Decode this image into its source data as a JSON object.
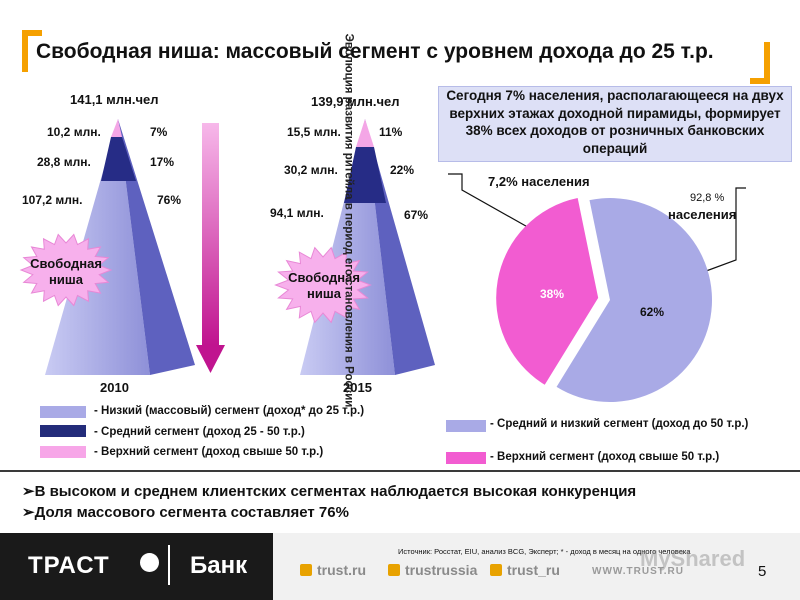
{
  "title": "Свободная ниша: массовый сегмент с уровнем дохода до 25 т.р.",
  "pyramid_2010": {
    "total": "141,1 млн.чел",
    "year": "2010",
    "rows": [
      {
        "abs": "10,2 млн.",
        "pct": "7%"
      },
      {
        "abs": "28,8 млн.",
        "pct": "17%"
      },
      {
        "abs": "107,2 млн.",
        "pct": "76%"
      }
    ],
    "niche_label": "Свободная ниша"
  },
  "pyramid_2015": {
    "total": "139,9 млн.чел",
    "year": "2015",
    "rows": [
      {
        "abs": "15,5 млн.",
        "pct": "11%"
      },
      {
        "abs": "30,2 млн.",
        "pct": "22%"
      },
      {
        "abs": "94,1 млн.",
        "pct": "67%"
      }
    ],
    "niche_label": "Свободная ниша"
  },
  "arrow_caption": "Эволюция развития ритейла в период его становления в России",
  "legend_left": [
    {
      "text": "- Низкий (массовый) сегмент (доход* до 25 т.р.)",
      "color": "#a9aae6"
    },
    {
      "text": "- Средний сегмент (доход 25 - 50 т.р.)",
      "color": "#232c7a"
    },
    {
      "text": "- Верхний сегмент (доход свыше 50 т.р.)",
      "color": "#f7a6e8"
    }
  ],
  "callout": "Сегодня 7% населения, располагающееся на двух верхних этажах доходной пирамиды, формирует 38% всех доходов от розничных банковских операций",
  "pie": {
    "label_small": "7,2% населения",
    "label_large_value": "92,8 %",
    "label_large_text": "населения",
    "slice_pink_label": "38%",
    "slice_blue_label": "62%"
  },
  "chart_data": {
    "type": "pie",
    "title": "",
    "slices": [
      {
        "name": "Верхний сегмент (доход свыше 50 т.р.)",
        "value": 38,
        "color": "#f25cd1"
      },
      {
        "name": "Средний и низкий сегмент (доход до 50 т.р.)",
        "value": 62,
        "color": "#a9aae6"
      }
    ]
  },
  "legend_right": [
    {
      "text": "- Средний и низкий сегмент (доход до 50 т.р.)",
      "color": "#a9aae6"
    },
    {
      "text": "- Верхний сегмент (доход свыше 50 т.р.)",
      "color": "#f25cd1"
    }
  ],
  "bullets": [
    "В высоком и среднем клиентских сегментах наблюдается высокая конкуренция",
    "Доля массового сегмента составляет 76%"
  ],
  "footer": {
    "brand": "ТРАСТ",
    "bank": "Банк",
    "source": "Источник: Росстат, EIU, анализ BCG, Эксперт; * - доход в месяц на одного человека",
    "links": [
      "trust.ru",
      "trustrussia",
      "trust_ru"
    ],
    "www": "WWW.TRUST.RU",
    "page": "5",
    "watermark": "MyShared"
  }
}
